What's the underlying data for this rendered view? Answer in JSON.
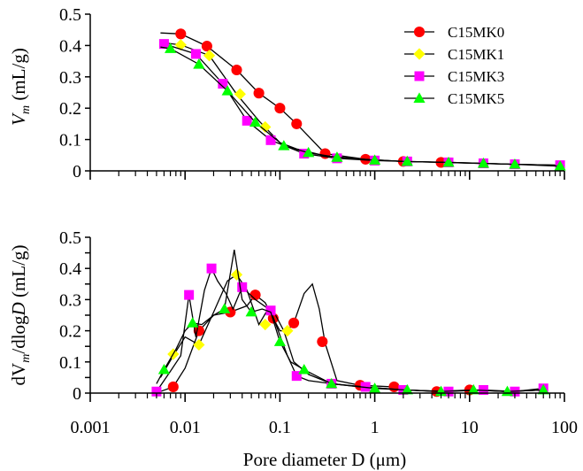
{
  "chart_data": [
    {
      "type": "line",
      "xscale": "log",
      "xlim": [
        0.001,
        100
      ],
      "ylim": [
        0,
        0.5
      ],
      "yticks": [
        "0",
        "0.1",
        "0.2",
        "0.3",
        "0.4",
        "0.5"
      ],
      "xticks": [],
      "ylabel_main": "V",
      "ylabel_sub": "m",
      "ylabel_rest": " (mL/g)",
      "xlabel": "",
      "legend": [
        "C15MK0",
        "C15MK1",
        "C15MK3",
        "C15MK5"
      ],
      "legend_position": "top-right",
      "series": [
        {
          "name": "C15MK0",
          "color": "#ff0000",
          "marker": "circle",
          "x": [
            0.0055,
            0.009,
            0.017,
            0.035,
            0.06,
            0.1,
            0.15,
            0.3,
            0.8,
            2,
            5,
            12,
            30,
            90
          ],
          "y": [
            0.44,
            0.437,
            0.398,
            0.322,
            0.248,
            0.2,
            0.15,
            0.055,
            0.037,
            0.03,
            0.027,
            0.024,
            0.021,
            0.018
          ],
          "mx": [
            0.009,
            0.017,
            0.035,
            0.06,
            0.1,
            0.15,
            0.3,
            0.8,
            2,
            5
          ],
          "my": [
            0.437,
            0.398,
            0.322,
            0.248,
            0.2,
            0.15,
            0.055,
            0.037,
            0.03,
            0.027
          ]
        },
        {
          "name": "C15MK1",
          "color": "#ffff00",
          "marker": "diamond",
          "x": [
            0.0055,
            0.009,
            0.018,
            0.035,
            0.06,
            0.1,
            0.15,
            0.3,
            0.8,
            2,
            5,
            12,
            30,
            90
          ],
          "y": [
            0.41,
            0.402,
            0.368,
            0.245,
            0.16,
            0.09,
            0.07,
            0.048,
            0.037,
            0.03,
            0.027,
            0.024,
            0.021,
            0.018
          ],
          "mx": [
            0.009,
            0.018,
            0.038,
            0.07
          ],
          "my": [
            0.402,
            0.368,
            0.245,
            0.14
          ]
        },
        {
          "name": "C15MK3",
          "color": "#ff00ff",
          "marker": "square",
          "x": [
            0.006,
            0.013,
            0.025,
            0.045,
            0.08,
            0.18,
            0.4,
            1,
            2.2,
            6,
            14,
            30,
            90
          ],
          "y": [
            0.405,
            0.373,
            0.278,
            0.16,
            0.098,
            0.055,
            0.04,
            0.033,
            0.03,
            0.027,
            0.024,
            0.021,
            0.018
          ],
          "mx": [
            0.006,
            0.013,
            0.025,
            0.045,
            0.08,
            0.18,
            0.4,
            1,
            2.2,
            6,
            14,
            30,
            90
          ],
          "my": [
            0.405,
            0.373,
            0.278,
            0.16,
            0.098,
            0.055,
            0.04,
            0.033,
            0.03,
            0.027,
            0.024,
            0.021,
            0.018
          ]
        },
        {
          "name": "C15MK5",
          "color": "#00ff00",
          "marker": "triangle",
          "x": [
            0.0055,
            0.007,
            0.014,
            0.028,
            0.055,
            0.11,
            0.2,
            0.4,
            1,
            2.2,
            6,
            14,
            30,
            90
          ],
          "y": [
            0.395,
            0.39,
            0.34,
            0.255,
            0.155,
            0.08,
            0.058,
            0.043,
            0.034,
            0.03,
            0.027,
            0.024,
            0.021,
            0.015
          ],
          "mx": [
            0.007,
            0.014,
            0.028,
            0.055,
            0.11,
            0.2,
            0.4,
            1,
            2.2,
            6,
            14,
            30,
            90
          ],
          "my": [
            0.39,
            0.34,
            0.255,
            0.155,
            0.08,
            0.058,
            0.043,
            0.034,
            0.03,
            0.027,
            0.024,
            0.021,
            0.015
          ]
        }
      ]
    },
    {
      "type": "line",
      "xscale": "log",
      "xlim": [
        0.001,
        100
      ],
      "ylim": [
        0,
        0.5
      ],
      "yticks": [
        "0",
        "0.05",
        "0.1",
        "0.15",
        "0.2",
        "0.25",
        "0.3",
        "0.35",
        "0.4",
        "0.45",
        "0.5"
      ],
      "xticks": [
        "0.001",
        "0.01",
        "0.1",
        "1",
        "10",
        "100"
      ],
      "ylabel_main": "dV",
      "ylabel_sub": "m",
      "ylabel_mid": "/dlog",
      "ylabel_italic": "D",
      "ylabel_rest": " (mL/g)",
      "xlabel": "Pore diameter D (μm)",
      "series": [
        {
          "name": "C15MK0",
          "color": "#ff0000",
          "marker": "circle",
          "x": [
            0.0055,
            0.0075,
            0.01,
            0.014,
            0.02,
            0.03,
            0.045,
            0.055,
            0.07,
            0.085,
            0.1,
            0.12,
            0.14,
            0.18,
            0.22,
            0.26,
            0.3,
            0.4,
            0.7,
            1.6,
            2.2,
            4.5,
            10,
            25,
            60
          ],
          "y": [
            0.005,
            0.02,
            0.08,
            0.2,
            0.25,
            0.26,
            0.28,
            0.315,
            0.29,
            0.24,
            0.2,
            0.2,
            0.225,
            0.32,
            0.35,
            0.27,
            0.16,
            0.04,
            0.025,
            0.02,
            0.01,
            0.005,
            0.01,
            0.005,
            0.01
          ],
          "mx": [
            0.0075,
            0.014,
            0.03,
            0.055,
            0.085,
            0.14,
            0.28,
            0.7,
            1.6,
            4.5,
            10
          ],
          "my": [
            0.02,
            0.2,
            0.26,
            0.315,
            0.24,
            0.225,
            0.165,
            0.025,
            0.02,
            0.005,
            0.01
          ]
        },
        {
          "name": "C15MK1",
          "color": "#ffff00",
          "marker": "diamond",
          "x": [
            0.0055,
            0.0075,
            0.01,
            0.014,
            0.02,
            0.028,
            0.035,
            0.045,
            0.06,
            0.075,
            0.09,
            0.11,
            0.14,
            0.2,
            0.35,
            0.7,
            2.2,
            5,
            12,
            25,
            60
          ],
          "y": [
            0.05,
            0.12,
            0.18,
            0.155,
            0.26,
            0.36,
            0.38,
            0.33,
            0.22,
            0.27,
            0.25,
            0.2,
            0.1,
            0.06,
            0.03,
            0.02,
            0.01,
            0.005,
            0.01,
            0.005,
            0.01
          ],
          "mx": [
            0.0075,
            0.014,
            0.035,
            0.07,
            0.12
          ],
          "my": [
            0.125,
            0.155,
            0.38,
            0.22,
            0.2
          ]
        },
        {
          "name": "C15MK3",
          "color": "#ff00ff",
          "marker": "square",
          "x": [
            0.005,
            0.007,
            0.009,
            0.011,
            0.013,
            0.016,
            0.019,
            0.022,
            0.027,
            0.032,
            0.04,
            0.055,
            0.08,
            0.12,
            0.15,
            0.2,
            0.35,
            0.8,
            2,
            6,
            14,
            30,
            60
          ],
          "y": [
            0.005,
            0.07,
            0.12,
            0.315,
            0.18,
            0.33,
            0.4,
            0.36,
            0.32,
            0.27,
            0.34,
            0.3,
            0.265,
            0.12,
            0.055,
            0.04,
            0.03,
            0.02,
            0.01,
            0.005,
            0.01,
            0.005,
            0.015
          ],
          "mx": [
            0.005,
            0.011,
            0.019,
            0.04,
            0.08,
            0.15,
            0.35,
            0.8,
            2,
            6,
            14,
            30,
            60
          ],
          "my": [
            0.005,
            0.315,
            0.4,
            0.34,
            0.265,
            0.055,
            0.03,
            0.02,
            0.01,
            0.005,
            0.01,
            0.005,
            0.015
          ]
        },
        {
          "name": "C15MK5",
          "color": "#00ff00",
          "marker": "triangle",
          "x": [
            0.005,
            0.006,
            0.008,
            0.01,
            0.012,
            0.015,
            0.02,
            0.026,
            0.033,
            0.04,
            0.05,
            0.065,
            0.08,
            0.1,
            0.13,
            0.18,
            0.35,
            1,
            2.2,
            5,
            11,
            25,
            60
          ],
          "y": [
            0.03,
            0.075,
            0.14,
            0.2,
            0.225,
            0.22,
            0.25,
            0.27,
            0.46,
            0.3,
            0.26,
            0.27,
            0.26,
            0.165,
            0.1,
            0.075,
            0.03,
            0.015,
            0.01,
            0.005,
            0.01,
            0.005,
            0.01
          ],
          "mx": [
            0.006,
            0.012,
            0.026,
            0.05,
            0.1,
            0.18,
            0.35,
            1,
            2.2,
            5,
            11,
            25,
            60
          ],
          "my": [
            0.075,
            0.225,
            0.27,
            0.26,
            0.165,
            0.075,
            0.03,
            0.015,
            0.01,
            0.005,
            0.01,
            0.005,
            0.01
          ]
        }
      ]
    }
  ]
}
